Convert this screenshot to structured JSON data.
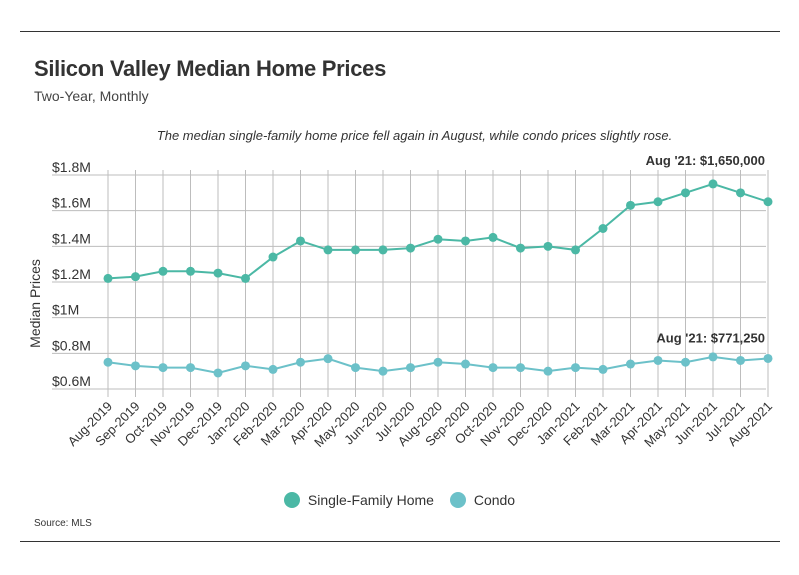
{
  "header": {
    "title": "Silicon Valley Median Home Prices",
    "subtitle": "Two-Year, Monthly",
    "annotation": "The median single-family home price fell again in August, while condo prices slightly rose."
  },
  "source": "Source:  MLS",
  "colors": {
    "single_family": "#4bb8a5",
    "condo": "#6cc1c9",
    "grid": "#bdbdbd",
    "text": "#333333"
  },
  "chart_data": {
    "type": "line",
    "ylabel": "Median Prices",
    "xlabel": "",
    "ylim": [
      0.6,
      1.8
    ],
    "y_ticks": [
      {
        "value": 0.6,
        "label": "$0.6M"
      },
      {
        "value": 0.8,
        "label": "$0.8M"
      },
      {
        "value": 1.0,
        "label": "$1M"
      },
      {
        "value": 1.2,
        "label": "$1.2M"
      },
      {
        "value": 1.4,
        "label": "$1.4M"
      },
      {
        "value": 1.6,
        "label": "$1.6M"
      },
      {
        "value": 1.8,
        "label": "$1.8M"
      }
    ],
    "grid": true,
    "legend_position": "bottom",
    "categories": [
      "Aug-2019",
      "Sep-2019",
      "Oct-2019",
      "Nov-2019",
      "Dec-2019",
      "Jan-2020",
      "Feb-2020",
      "Mar-2020",
      "Apr-2020",
      "May-2020",
      "Jun-2020",
      "Jul-2020",
      "Aug-2020",
      "Sep-2020",
      "Oct-2020",
      "Nov-2020",
      "Dec-2020",
      "Jan-2021",
      "Feb-2021",
      "Mar-2021",
      "Apr-2021",
      "May-2021",
      "Jun-2021",
      "Jul-2021",
      "Aug-2021"
    ],
    "series": [
      {
        "name": "Single-Family Home",
        "color": "#4bb8a5",
        "values": [
          1.22,
          1.23,
          1.26,
          1.26,
          1.25,
          1.22,
          1.34,
          1.43,
          1.38,
          1.38,
          1.38,
          1.39,
          1.44,
          1.43,
          1.45,
          1.39,
          1.4,
          1.38,
          1.5,
          1.63,
          1.65,
          1.7,
          1.75,
          1.7,
          1.65
        ],
        "end_label": "Aug '21: $1,650,000"
      },
      {
        "name": "Condo",
        "color": "#6cc1c9",
        "values": [
          0.75,
          0.73,
          0.72,
          0.72,
          0.69,
          0.73,
          0.71,
          0.75,
          0.77,
          0.72,
          0.7,
          0.72,
          0.75,
          0.74,
          0.72,
          0.72,
          0.7,
          0.72,
          0.71,
          0.74,
          0.76,
          0.75,
          0.78,
          0.76,
          0.7713
        ],
        "end_label": "Aug '21: $771,250"
      }
    ]
  }
}
